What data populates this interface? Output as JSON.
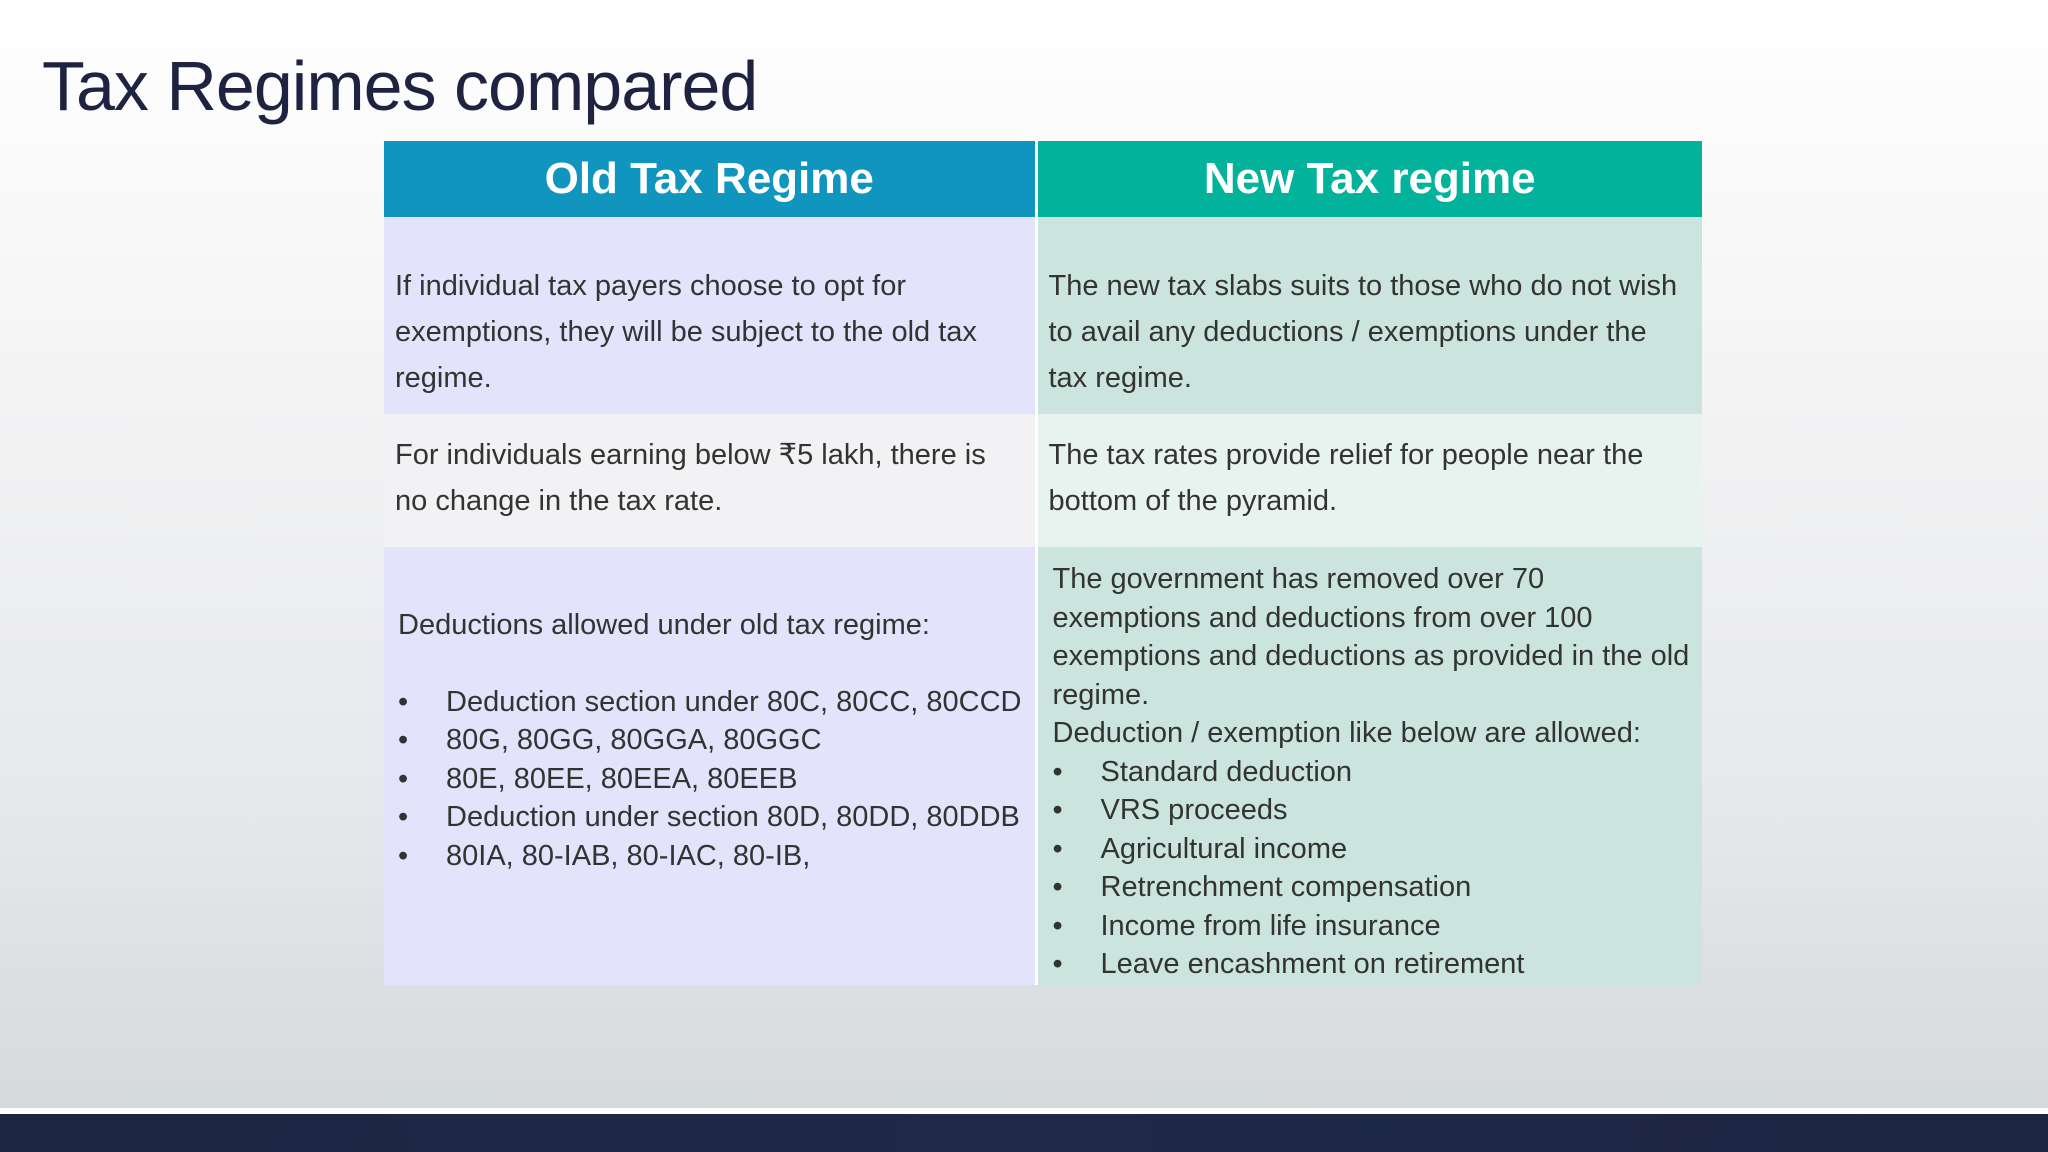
{
  "title": "Tax Regimes compared",
  "headers": {
    "old": "Old Tax Regime",
    "new": "New Tax regime"
  },
  "rows": [
    {
      "old": "If individual tax payers choose to opt for exemptions, they will be subject to the old tax regime.",
      "new": "The new tax slabs suits to those who do not wish to avail any deductions /  exemptions under the tax regime."
    },
    {
      "old": "For individuals earning below ₹5 lakh, there is no change in the tax rate.",
      "new": "The tax rates provide relief for people near the bottom of the pyramid."
    }
  ],
  "deductions_old": {
    "intro": "Deductions allowed under old tax regime:",
    "items": [
      "Deduction section under 80C, 80CC, 80CCD",
      "80G, 80GG, 80GGA, 80GGC",
      "80E, 80EE, 80EEA, 80EEB",
      "Deduction under section 80D, 80DD, 80DDB",
      "80IA, 80-IAB, 80-IAC, 80-IB,"
    ]
  },
  "deductions_new": {
    "intro": "The government has removed over 70 exemptions and deductions from over 100 exemptions and deductions as provided in the old regime.",
    "allowed": "Deduction / exemption like below are allowed:",
    "items": [
      "Standard deduction",
      "VRS proceeds",
      "Agricultural income",
      "Retrenchment compensation",
      "Income from life insurance",
      "Leave encashment on retirement"
    ]
  },
  "bullet": "•",
  "colors": {
    "title": "#1d2340",
    "header_old": "#1096be",
    "header_new": "#02b29b",
    "cell_old": "#e3e3fb",
    "cell_new": "#cbe5de",
    "bottom_bar": "#1c2541"
  }
}
